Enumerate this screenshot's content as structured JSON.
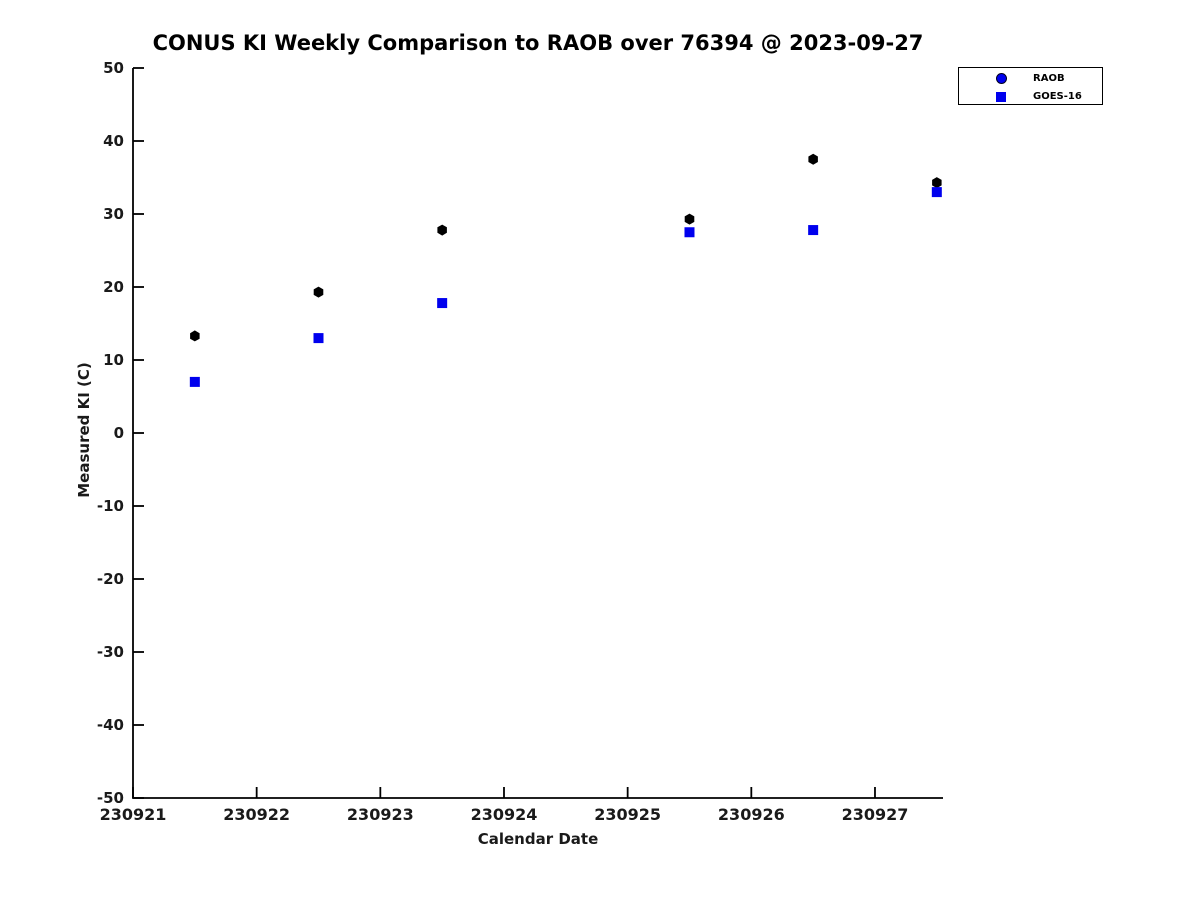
{
  "figure": {
    "background": "#ffffff"
  },
  "colors": {
    "raob_point": "#000000",
    "goes16_point": "#0000ee",
    "legend_raob_marker": "#0000ee",
    "axis_line": "#000000",
    "text": "#1a1a1a"
  },
  "chart_data": {
    "type": "scatter",
    "title": "CONUS KI Weekly Comparison to RAOB over 76394 @ 2023-09-27",
    "xlabel": "Calendar Date",
    "ylabel": "Measured KI (C)",
    "xlim": [
      230921,
      230927.55
    ],
    "ylim": [
      -50,
      50
    ],
    "x_ticks": [
      230921,
      230922,
      230923,
      230924,
      230925,
      230926,
      230927
    ],
    "y_ticks": [
      -50,
      -40,
      -30,
      -20,
      -10,
      0,
      10,
      20,
      30,
      40,
      50
    ],
    "grid": false,
    "legend_position": "top-right",
    "series": [
      {
        "name": "RAOB",
        "marker": "hexagon",
        "color": "#000000",
        "legend_marker": "circle",
        "legend_marker_color": "#0000ee",
        "x": [
          230921.5,
          230922.5,
          230923.5,
          230925.5,
          230926.5,
          230927.5
        ],
        "y": [
          13.3,
          19.3,
          27.8,
          29.3,
          37.5,
          34.3
        ]
      },
      {
        "name": "GOES-16",
        "marker": "square",
        "color": "#0000ee",
        "legend_marker": "square",
        "legend_marker_color": "#0000ee",
        "x": [
          230921.5,
          230922.5,
          230923.5,
          230925.5,
          230926.5,
          230927.5
        ],
        "y": [
          7.0,
          13.0,
          17.8,
          27.5,
          27.8,
          33.0
        ]
      }
    ]
  }
}
